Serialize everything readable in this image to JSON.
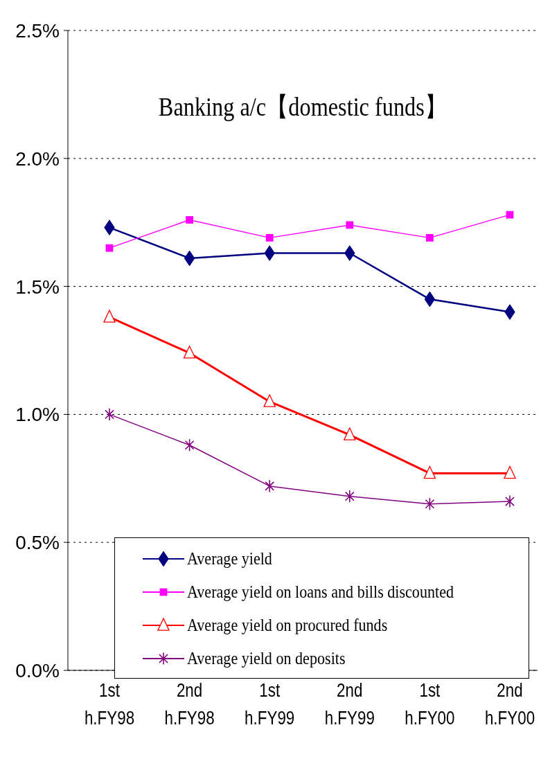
{
  "chart_data": {
    "type": "line",
    "title": "Banking a/c【domestic funds】",
    "categories": [
      "1st\nh.FY98",
      "2nd\nh.FY98",
      "1st\nh.FY99",
      "2nd\nh.FY99",
      "1st\nh.FY00",
      "2nd\nh.FY00"
    ],
    "series": [
      {
        "name": "Average yield",
        "color": "#000080",
        "marker": "diamond",
        "values": [
          1.73,
          1.61,
          1.63,
          1.63,
          1.45,
          1.4
        ]
      },
      {
        "name": "Average yield on loans and bills discounted",
        "color": "#ff00ff",
        "marker": "square",
        "values": [
          1.65,
          1.76,
          1.69,
          1.74,
          1.69,
          1.78
        ]
      },
      {
        "name": "Average yield on procured funds",
        "color": "#ff0000",
        "marker": "triangle",
        "values": [
          1.38,
          1.24,
          1.05,
          0.92,
          0.77,
          0.77
        ]
      },
      {
        "name": "Average yield on deposits",
        "color": "#800080",
        "marker": "cross",
        "values": [
          1.0,
          0.88,
          0.72,
          0.68,
          0.65,
          0.66
        ]
      }
    ],
    "ylim": [
      0,
      2.5
    ],
    "yticks": [
      {
        "value": 0,
        "label": "0.0%"
      },
      {
        "value": 0.5,
        "label": "0.5%"
      },
      {
        "value": 1,
        "label": "1.0%"
      },
      {
        "value": 1.5,
        "label": "1.5%"
      },
      {
        "value": 2,
        "label": "2.0%"
      },
      {
        "value": 2.5,
        "label": "2.5%"
      }
    ],
    "grid": "y",
    "legend": "bottom right",
    "line_style": "solid"
  }
}
